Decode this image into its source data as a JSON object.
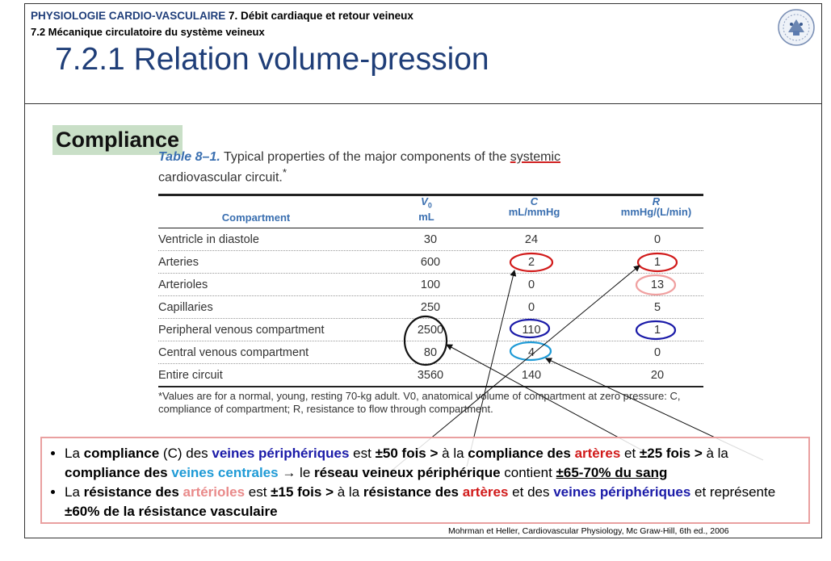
{
  "header": {
    "subject": "PHYSIOLOGIE CARDIO-VASCULAIRE",
    "chapter": "7. Débit cardiaque et retour veineux",
    "section": "7.2 Mécanique circulatoire du système veineux",
    "title": "7.2.1 Relation volume-pression"
  },
  "logo": {
    "icon": "university-seal-icon"
  },
  "label": "Compliance",
  "table": {
    "caption_num": "Table 8–1.",
    "caption_text_1": "Typical properties of the major components of the ",
    "caption_underlined": "systemic",
    "caption_text_2": "cardiovascular circuit.",
    "caption_mark": "*",
    "headers": {
      "compartment": "Compartment",
      "v0_label": "V",
      "v0_sub": "0",
      "v0_unit": "mL",
      "c_label": "C",
      "c_unit": "mL/mmHg",
      "r_label": "R",
      "r_unit": "mmHg/(L/min)"
    },
    "rows": [
      {
        "name": "Ventricle in diastole",
        "v0": "30",
        "c": "24",
        "r": "0"
      },
      {
        "name": "Arteries",
        "v0": "600",
        "c": "2",
        "r": "1"
      },
      {
        "name": "Arterioles",
        "v0": "100",
        "c": "0",
        "r": "13"
      },
      {
        "name": "Capillaries",
        "v0": "250",
        "c": "0",
        "r": "5"
      },
      {
        "name": "Peripheral venous compartment",
        "v0": "2500",
        "c": "110",
        "r": "1"
      },
      {
        "name": "Central venous compartment",
        "v0": "80",
        "c": "4",
        "r": "0"
      },
      {
        "name": "Entire circuit",
        "v0": "3560",
        "c": "140",
        "r": "20"
      }
    ],
    "footnote": "*Values are for a normal, young, resting 70-kg adult. V0, anatomical volume of compartment at zero pressure: C, compliance of compartment; R, resistance to flow through compartment."
  },
  "highlight_colors": {
    "red": "#d11a1a",
    "pink": "#f0a0a0",
    "blue": "#1a1aa8",
    "cyan": "#1e9ad6",
    "black": "#111111"
  },
  "summary": {
    "b1": {
      "t1": "La ",
      "t2": "compliance",
      "t3": " (C) des ",
      "t4": "veines périphériques",
      "t5": " est ",
      "t6": "±50 fois >",
      "t7": " à la ",
      "t8": "compliance des ",
      "t9": "artères",
      "t10": " et ",
      "t11": "±25 fois >",
      "t12": " à la ",
      "t13": "compliance des ",
      "t14": "veines centrales",
      "t15": " → le ",
      "t16": "réseau veineux périphérique",
      "t17": " contient ",
      "t18": "±65-70% du sang"
    },
    "b2": {
      "t1": "La ",
      "t2": "résistance des ",
      "t3": "artérioles",
      "t4": " est ",
      "t5": "±15 fois >",
      "t6": " à la ",
      "t7": "résistance des ",
      "t8": "artères",
      "t9": " et des ",
      "t10": "veines périphériques",
      "t11": " et représente ",
      "t12": "±60% de la résistance vasculaire"
    }
  },
  "citation": "Mohrman et Heller, Cardiovascular Physiology, Mc Graw-Hill, 6th ed., 2006"
}
